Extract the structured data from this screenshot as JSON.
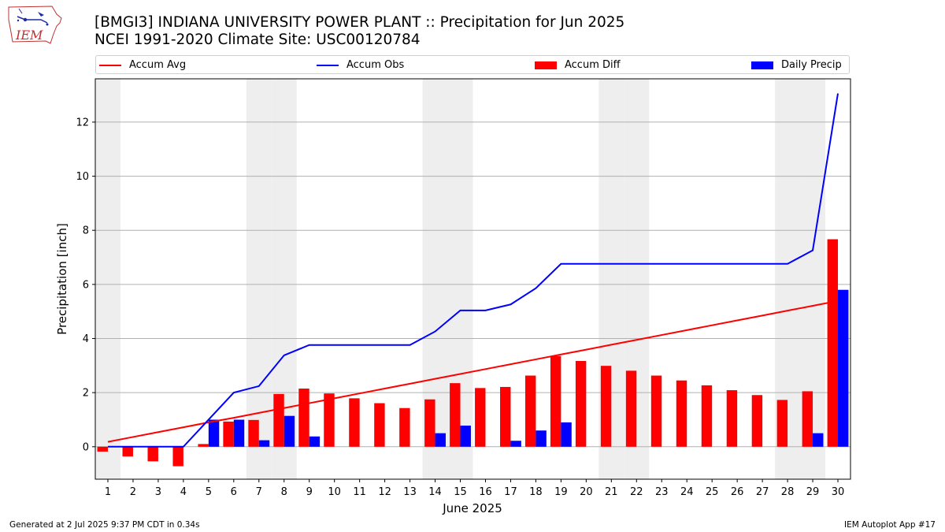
{
  "title_line1": "[BMGI3] INDIANA UNIVERSITY POWER PLANT :: Precipitation for Jun 2025",
  "title_line2": "NCEI 1991-2020 Climate Site: USC00120784",
  "logo_text": "IEM",
  "footer_left": "Generated at 2 Jul 2025 9:37 PM CDT in 0.34s",
  "footer_right": "IEM Autoplot App #17",
  "colors": {
    "avg": "#ff0000",
    "obs": "#0000ff",
    "diff": "#ff0000",
    "daily": "#0000ff",
    "weekend": "#eeeeee",
    "grid": "#b0b0b0"
  },
  "legend": [
    {
      "label": "Accum Avg",
      "kind": "line",
      "color": "#ff0000"
    },
    {
      "label": "Accum Obs",
      "kind": "line",
      "color": "#0000ff"
    },
    {
      "label": "Accum Diff",
      "kind": "box",
      "color": "#ff0000"
    },
    {
      "label": "Daily Precip",
      "kind": "box",
      "color": "#0000ff"
    }
  ],
  "chart_data": {
    "type": "bar",
    "xlabel": "June 2025",
    "ylabel": "Precipitation [inch]",
    "xlim": [
      0.5,
      30.5
    ],
    "ylim": [
      -1.2,
      13.6
    ],
    "yticks": [
      0,
      2,
      4,
      6,
      8,
      10,
      12
    ],
    "grid": "horizontal",
    "legend_position": "top",
    "shaded_days": [
      1,
      7,
      8,
      14,
      15,
      21,
      22,
      28,
      29
    ],
    "categories": [
      "1",
      "2",
      "3",
      "4",
      "5",
      "6",
      "7",
      "8",
      "9",
      "10",
      "11",
      "12",
      "13",
      "14",
      "15",
      "16",
      "17",
      "18",
      "19",
      "20",
      "21",
      "22",
      "23",
      "24",
      "25",
      "26",
      "27",
      "28",
      "29",
      "30"
    ],
    "series": [
      {
        "name": "Accum Avg",
        "type": "line",
        "values": [
          0.18,
          0.36,
          0.54,
          0.72,
          0.9,
          1.07,
          1.25,
          1.43,
          1.61,
          1.79,
          1.97,
          2.15,
          2.33,
          2.51,
          2.69,
          2.87,
          3.05,
          3.23,
          3.41,
          3.59,
          3.77,
          3.95,
          4.13,
          4.31,
          4.49,
          4.67,
          4.85,
          5.03,
          5.21,
          5.39
        ]
      },
      {
        "name": "Accum Obs",
        "type": "line",
        "values": [
          0,
          0,
          0,
          0,
          1.0,
          2.0,
          2.24,
          3.38,
          3.76,
          3.76,
          3.76,
          3.76,
          3.76,
          4.26,
          5.04,
          5.04,
          5.26,
          5.86,
          6.76,
          6.76,
          6.76,
          6.76,
          6.76,
          6.76,
          6.76,
          6.76,
          6.76,
          6.76,
          7.26,
          13.06
        ]
      },
      {
        "name": "Accum Diff",
        "type": "bar",
        "values": [
          -0.18,
          -0.36,
          -0.54,
          -0.72,
          0.1,
          0.93,
          0.99,
          1.95,
          2.15,
          1.97,
          1.79,
          1.61,
          1.43,
          1.75,
          2.35,
          2.17,
          2.21,
          2.63,
          3.35,
          3.17,
          2.99,
          2.81,
          2.63,
          2.45,
          2.27,
          2.09,
          1.91,
          1.73,
          2.05,
          7.67
        ]
      },
      {
        "name": "Daily Precip",
        "type": "bar",
        "values": [
          0,
          0,
          0,
          0,
          1.0,
          1.0,
          0.24,
          1.14,
          0.38,
          0,
          0,
          0,
          0,
          0.5,
          0.78,
          0,
          0.22,
          0.6,
          0.9,
          0,
          0,
          0,
          0,
          0,
          0,
          0,
          0,
          0,
          0.5,
          5.8
        ]
      }
    ]
  }
}
